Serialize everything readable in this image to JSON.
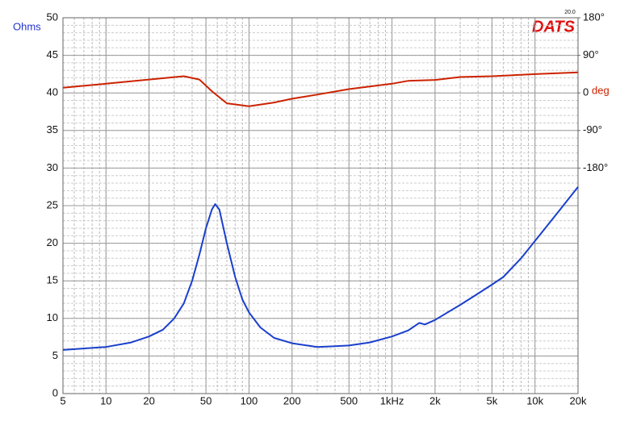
{
  "chart_data": {
    "type": "line",
    "logo": "DATS",
    "logo_version": "20.0",
    "ylabel": "Ohms",
    "y2label": "deg",
    "xscale": "log",
    "grid": true,
    "xlim": [
      5,
      20000
    ],
    "xticks": [
      5,
      10,
      20,
      50,
      100,
      200,
      500,
      {
        "value": 1000,
        "label": "1kHz"
      },
      {
        "value": 2000,
        "label": "2k"
      },
      {
        "value": 5000,
        "label": "5k"
      },
      {
        "value": 10000,
        "label": "10k"
      },
      {
        "value": 20000,
        "label": "20k"
      }
    ],
    "ylim": [
      0,
      50
    ],
    "yticks": [
      0,
      5,
      10,
      15,
      20,
      25,
      30,
      35,
      40,
      45,
      50
    ],
    "y2lim": [
      -720,
      180
    ],
    "y2ticks": [
      {
        "value": 180,
        "label": "180°"
      },
      {
        "value": 90,
        "label": "90°"
      },
      0,
      {
        "value": -90,
        "label": "-90°"
      },
      {
        "value": -180,
        "label": "-180°"
      }
    ],
    "series": [
      {
        "color": "#1a3fcc",
        "x": [
          5,
          10,
          15,
          20,
          25,
          30,
          35,
          40,
          45,
          50,
          55,
          58,
          62,
          70,
          80,
          90,
          100,
          120,
          150,
          200,
          300,
          400,
          500,
          700,
          1000,
          1300,
          1550,
          1700,
          2000,
          3000,
          4000,
          5000,
          6000,
          8000,
          10000,
          15000,
          20000
        ],
        "values": [
          5.8,
          6.2,
          6.8,
          7.6,
          8.5,
          10,
          12,
          15,
          18.5,
          22,
          24.5,
          25.2,
          24.5,
          20,
          15.5,
          12.5,
          10.8,
          8.8,
          7.4,
          6.7,
          6.2,
          6.3,
          6.4,
          6.8,
          7.6,
          8.4,
          9.4,
          9.2,
          9.8,
          11.8,
          13.3,
          14.5,
          15.5,
          18,
          20.3,
          24.5,
          27.5
        ]
      },
      {
        "color": "#cc2200",
        "axis": "y2",
        "x": [
          5,
          10,
          20,
          35,
          45,
          55,
          70,
          100,
          150,
          200,
          300,
          500,
          1000,
          1300,
          2000,
          3000,
          5000,
          10000,
          20000
        ],
        "values": [
          12.6,
          22,
          32,
          40,
          32,
          4,
          -25,
          -32,
          -23,
          -14,
          -4,
          9,
          22,
          29,
          31,
          38,
          40,
          45,
          49
        ]
      }
    ]
  }
}
